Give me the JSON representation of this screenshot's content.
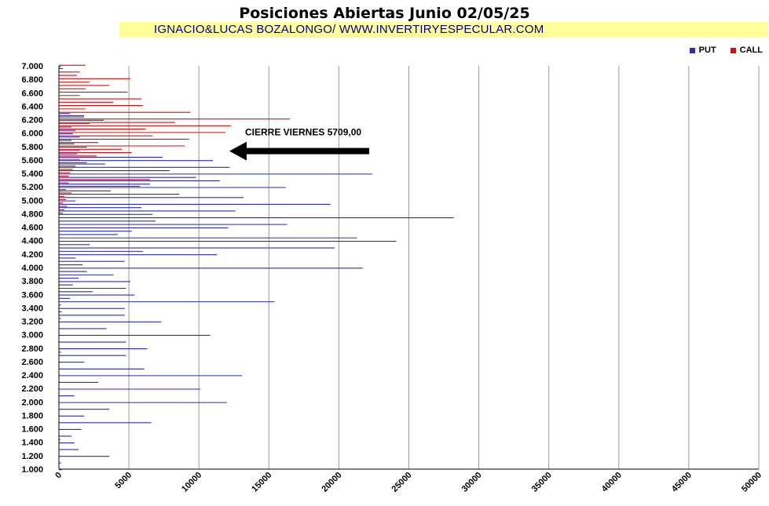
{
  "chart_data": {
    "type": "bar",
    "orientation": "horizontal",
    "title": "Posiciones Abiertas Junio 02/05/25",
    "subtitle": "IGNACIO&LUCAS BOZALONGO/ WWW.INVERTIRYESPECULAR.COM",
    "xlim": [
      0,
      50000
    ],
    "x_ticks": [
      "0",
      "5000",
      "10000",
      "15000",
      "20000",
      "25000",
      "30000",
      "35000",
      "40000",
      "45000",
      "50000"
    ],
    "y_ticks": [
      "7.000",
      "6.800",
      "6.600",
      "6.400",
      "6.200",
      "6.000",
      "5.800",
      "5.600",
      "5.400",
      "5.200",
      "5.000",
      "4.800",
      "4.600",
      "4.400",
      "4.200",
      "4.000",
      "3.800",
      "3.600",
      "3.400",
      "3.200",
      "3.000",
      "2.800",
      "2.600",
      "2.400",
      "2.200",
      "2.000",
      "1.800",
      "1.600",
      "1.400",
      "1.200",
      "1.000"
    ],
    "ylim": [
      1000,
      7000
    ],
    "grid": "vertical",
    "legend_position": "top-right",
    "colors": {
      "put": "#2b2bb3",
      "call": "#cc1111"
    },
    "series": [
      {
        "name": "PUT",
        "strikes": [
          7000,
          6300,
          6250,
          6200,
          6150,
          6100,
          6050,
          6000,
          5950,
          5900,
          5850,
          5800,
          5750,
          5700,
          5650,
          5600,
          5550,
          5500,
          5450,
          5400,
          5350,
          5300,
          5250,
          5200,
          5150,
          5100,
          5050,
          5000,
          4950,
          4900,
          4850,
          4800,
          4750,
          4700,
          4650,
          4600,
          4550,
          4500,
          4450,
          4400,
          4350,
          4300,
          4250,
          4200,
          4150,
          4100,
          4050,
          4000,
          3950,
          3900,
          3850,
          3800,
          3750,
          3700,
          3650,
          3600,
          3550,
          3500,
          3450,
          3400,
          3350,
          3300,
          3250,
          3200,
          3100,
          3000,
          2900,
          2800,
          2750,
          2700,
          2600,
          2500,
          2400,
          2300,
          2200,
          2100,
          2000,
          1900,
          1800,
          1700,
          1600,
          1500,
          1450,
          1400,
          1300,
          1200,
          1100,
          1000
        ],
        "values": [
          150,
          800,
          1800,
          3200,
          2200,
          900,
          1200,
          1000,
          1500,
          900,
          1100,
          2000,
          1500,
          1300,
          7400,
          11000,
          3300,
          12200,
          7900,
          22400,
          9800,
          11500,
          6500,
          16200,
          3700,
          8600,
          13200,
          1200,
          19400,
          5900,
          12600,
          6700,
          28200,
          6900,
          16300,
          12100,
          5200,
          4200,
          21300,
          24100,
          2200,
          19700,
          6000,
          11300,
          1200,
          4700,
          1700,
          21700,
          2000,
          3900,
          1400,
          5100,
          1000,
          4800,
          2400,
          5400,
          800,
          15400,
          150,
          4700,
          200,
          4700,
          150,
          7300,
          3400,
          10800,
          4800,
          6300,
          150,
          4800,
          1800,
          6100,
          13100,
          2800,
          10100,
          1100,
          12000,
          3600,
          1800,
          6600,
          1600,
          900,
          100,
          1100,
          1400,
          3600,
          150,
          200
        ]
      },
      {
        "name": "CALL",
        "strikes": [
          7000,
          6950,
          6900,
          6850,
          6800,
          6750,
          6700,
          6650,
          6600,
          6550,
          6500,
          6450,
          6400,
          6350,
          6300,
          6250,
          6200,
          6150,
          6100,
          6050,
          6000,
          5950,
          5900,
          5850,
          5800,
          5750,
          5700,
          5650,
          5600,
          5550,
          5500,
          5450,
          5400,
          5350,
          5300,
          5250,
          5200,
          5150,
          5100,
          5050,
          5000,
          4950,
          4900,
          4850,
          4800
        ],
        "values": [
          1900,
          300,
          1500,
          1300,
          5100,
          2200,
          3600,
          1900,
          4900,
          1500,
          5900,
          3900,
          6000,
          1900,
          9400,
          1800,
          16500,
          8300,
          12300,
          6200,
          11900,
          6700,
          9300,
          2800,
          9000,
          4500,
          5200,
          2700,
          1500,
          2000,
          1200,
          1000,
          800,
          700,
          6500,
          700,
          5800,
          500,
          900,
          400,
          500,
          300,
          600,
          400,
          300
        ]
      }
    ],
    "annotations": [
      {
        "text": "CIERRE VIERNES 5709,00",
        "y": 5709
      }
    ]
  }
}
